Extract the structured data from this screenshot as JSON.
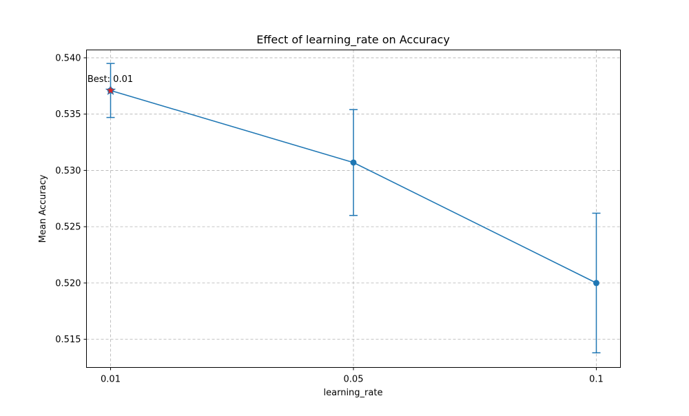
{
  "chart_data": {
    "type": "line",
    "title": "Effect of learning_rate on Accuracy",
    "xlabel": "learning_rate",
    "ylabel": "Mean Accuracy",
    "categories": [
      "0.01",
      "0.05",
      "0.1"
    ],
    "series": [
      {
        "values": [
          0.5371,
          0.5307,
          0.52
        ],
        "error": [
          0.0024,
          0.0047,
          0.0062
        ],
        "color": "#1f77b4"
      }
    ],
    "ylim": [
      0.5125,
      0.5407
    ],
    "yticks": [
      0.515,
      0.52,
      0.525,
      0.53,
      0.535,
      0.54
    ],
    "ytick_labels": [
      "0.515",
      "0.520",
      "0.525",
      "0.530",
      "0.535",
      "0.540"
    ],
    "grid": true,
    "best": {
      "index": 0,
      "label": "Best: 0.01",
      "marker": "star",
      "marker_color": "#d62728"
    }
  }
}
